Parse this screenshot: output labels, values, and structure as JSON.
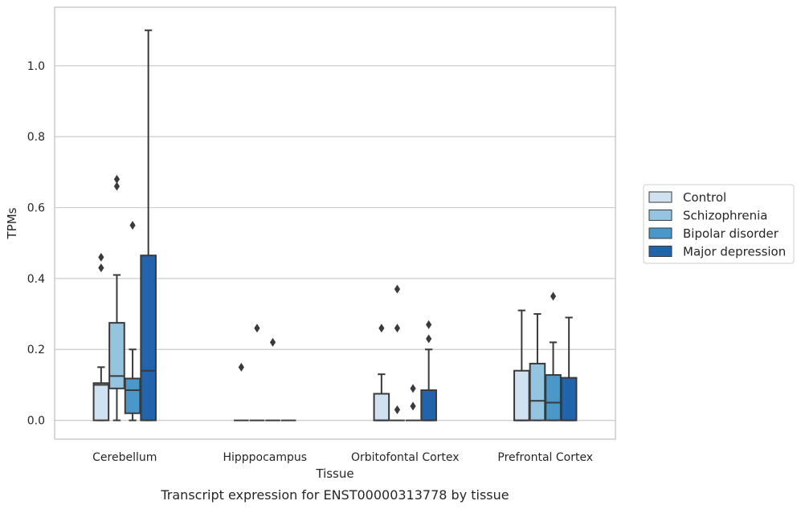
{
  "chart_data": {
    "type": "boxplot",
    "caption": "Transcript expression for ENST00000313778 by tissue",
    "xlabel": "Tissue",
    "ylabel": "TPMs",
    "ylim": [
      -0.053,
      1.165
    ],
    "yticks": [
      0.0,
      0.2,
      0.4,
      0.6,
      0.8,
      1.0
    ],
    "ytick_labels": [
      "0.0",
      "0.2",
      "0.4",
      "0.6",
      "0.8",
      "1.0"
    ],
    "grid": "horizontal",
    "legend_position": "right",
    "categories": [
      "Cerebellum",
      "Hipppocampus",
      "Orbitofontal Cortex",
      "Prefrontal Cortex"
    ],
    "series": [
      {
        "name": "Control",
        "color": "#d0e1f2",
        "boxes": [
          {
            "q1": 0.0,
            "median": 0.1,
            "q3": 0.105,
            "whislo": 0.0,
            "whishi": 0.15,
            "fliers": [
              0.43,
              0.46
            ]
          },
          {
            "q1": 0.0,
            "median": 0.0,
            "q3": 0.0,
            "whislo": 0.0,
            "whishi": 0.0,
            "fliers": [
              0.15
            ]
          },
          {
            "q1": 0.0,
            "median": 0.0,
            "q3": 0.075,
            "whislo": 0.0,
            "whishi": 0.13,
            "fliers": [
              0.26
            ]
          },
          {
            "q1": 0.0,
            "median": 0.0,
            "q3": 0.14,
            "whislo": 0.0,
            "whishi": 0.31,
            "fliers": []
          }
        ]
      },
      {
        "name": "Schizophrenia",
        "color": "#94c4df",
        "boxes": [
          {
            "q1": 0.09,
            "median": 0.125,
            "q3": 0.275,
            "whislo": 0.0,
            "whishi": 0.41,
            "fliers": [
              0.66,
              0.68
            ]
          },
          {
            "q1": 0.0,
            "median": 0.0,
            "q3": 0.0,
            "whislo": 0.0,
            "whishi": 0.0,
            "fliers": [
              0.26
            ]
          },
          {
            "q1": 0.0,
            "median": 0.0,
            "q3": 0.0,
            "whislo": 0.0,
            "whishi": 0.0,
            "fliers": [
              0.03,
              0.26,
              0.37
            ]
          },
          {
            "q1": 0.0,
            "median": 0.055,
            "q3": 0.16,
            "whislo": 0.0,
            "whishi": 0.3,
            "fliers": []
          }
        ]
      },
      {
        "name": "Bipolar disorder",
        "color": "#4a98c9",
        "boxes": [
          {
            "q1": 0.02,
            "median": 0.085,
            "q3": 0.118,
            "whislo": 0.0,
            "whishi": 0.2,
            "fliers": [
              0.55
            ]
          },
          {
            "q1": 0.0,
            "median": 0.0,
            "q3": 0.0,
            "whislo": 0.0,
            "whishi": 0.0,
            "fliers": [
              0.22
            ]
          },
          {
            "q1": 0.0,
            "median": 0.0,
            "q3": 0.0,
            "whislo": 0.0,
            "whishi": 0.0,
            "fliers": [
              0.04,
              0.09
            ]
          },
          {
            "q1": 0.0,
            "median": 0.05,
            "q3": 0.128,
            "whislo": 0.0,
            "whishi": 0.22,
            "fliers": [
              0.35
            ]
          }
        ]
      },
      {
        "name": "Major depression",
        "color": "#2164ab",
        "boxes": [
          {
            "q1": 0.0,
            "median": 0.14,
            "q3": 0.465,
            "whislo": 0.0,
            "whishi": 1.1,
            "fliers": []
          },
          {
            "q1": 0.0,
            "median": 0.0,
            "q3": 0.0,
            "whislo": 0.0,
            "whishi": 0.0,
            "fliers": []
          },
          {
            "q1": 0.0,
            "median": 0.0,
            "q3": 0.085,
            "whislo": 0.0,
            "whishi": 0.2,
            "fliers": [
              0.23,
              0.27
            ]
          },
          {
            "q1": 0.0,
            "median": 0.0,
            "q3": 0.12,
            "whislo": 0.0,
            "whishi": 0.29,
            "fliers": []
          }
        ]
      }
    ]
  }
}
